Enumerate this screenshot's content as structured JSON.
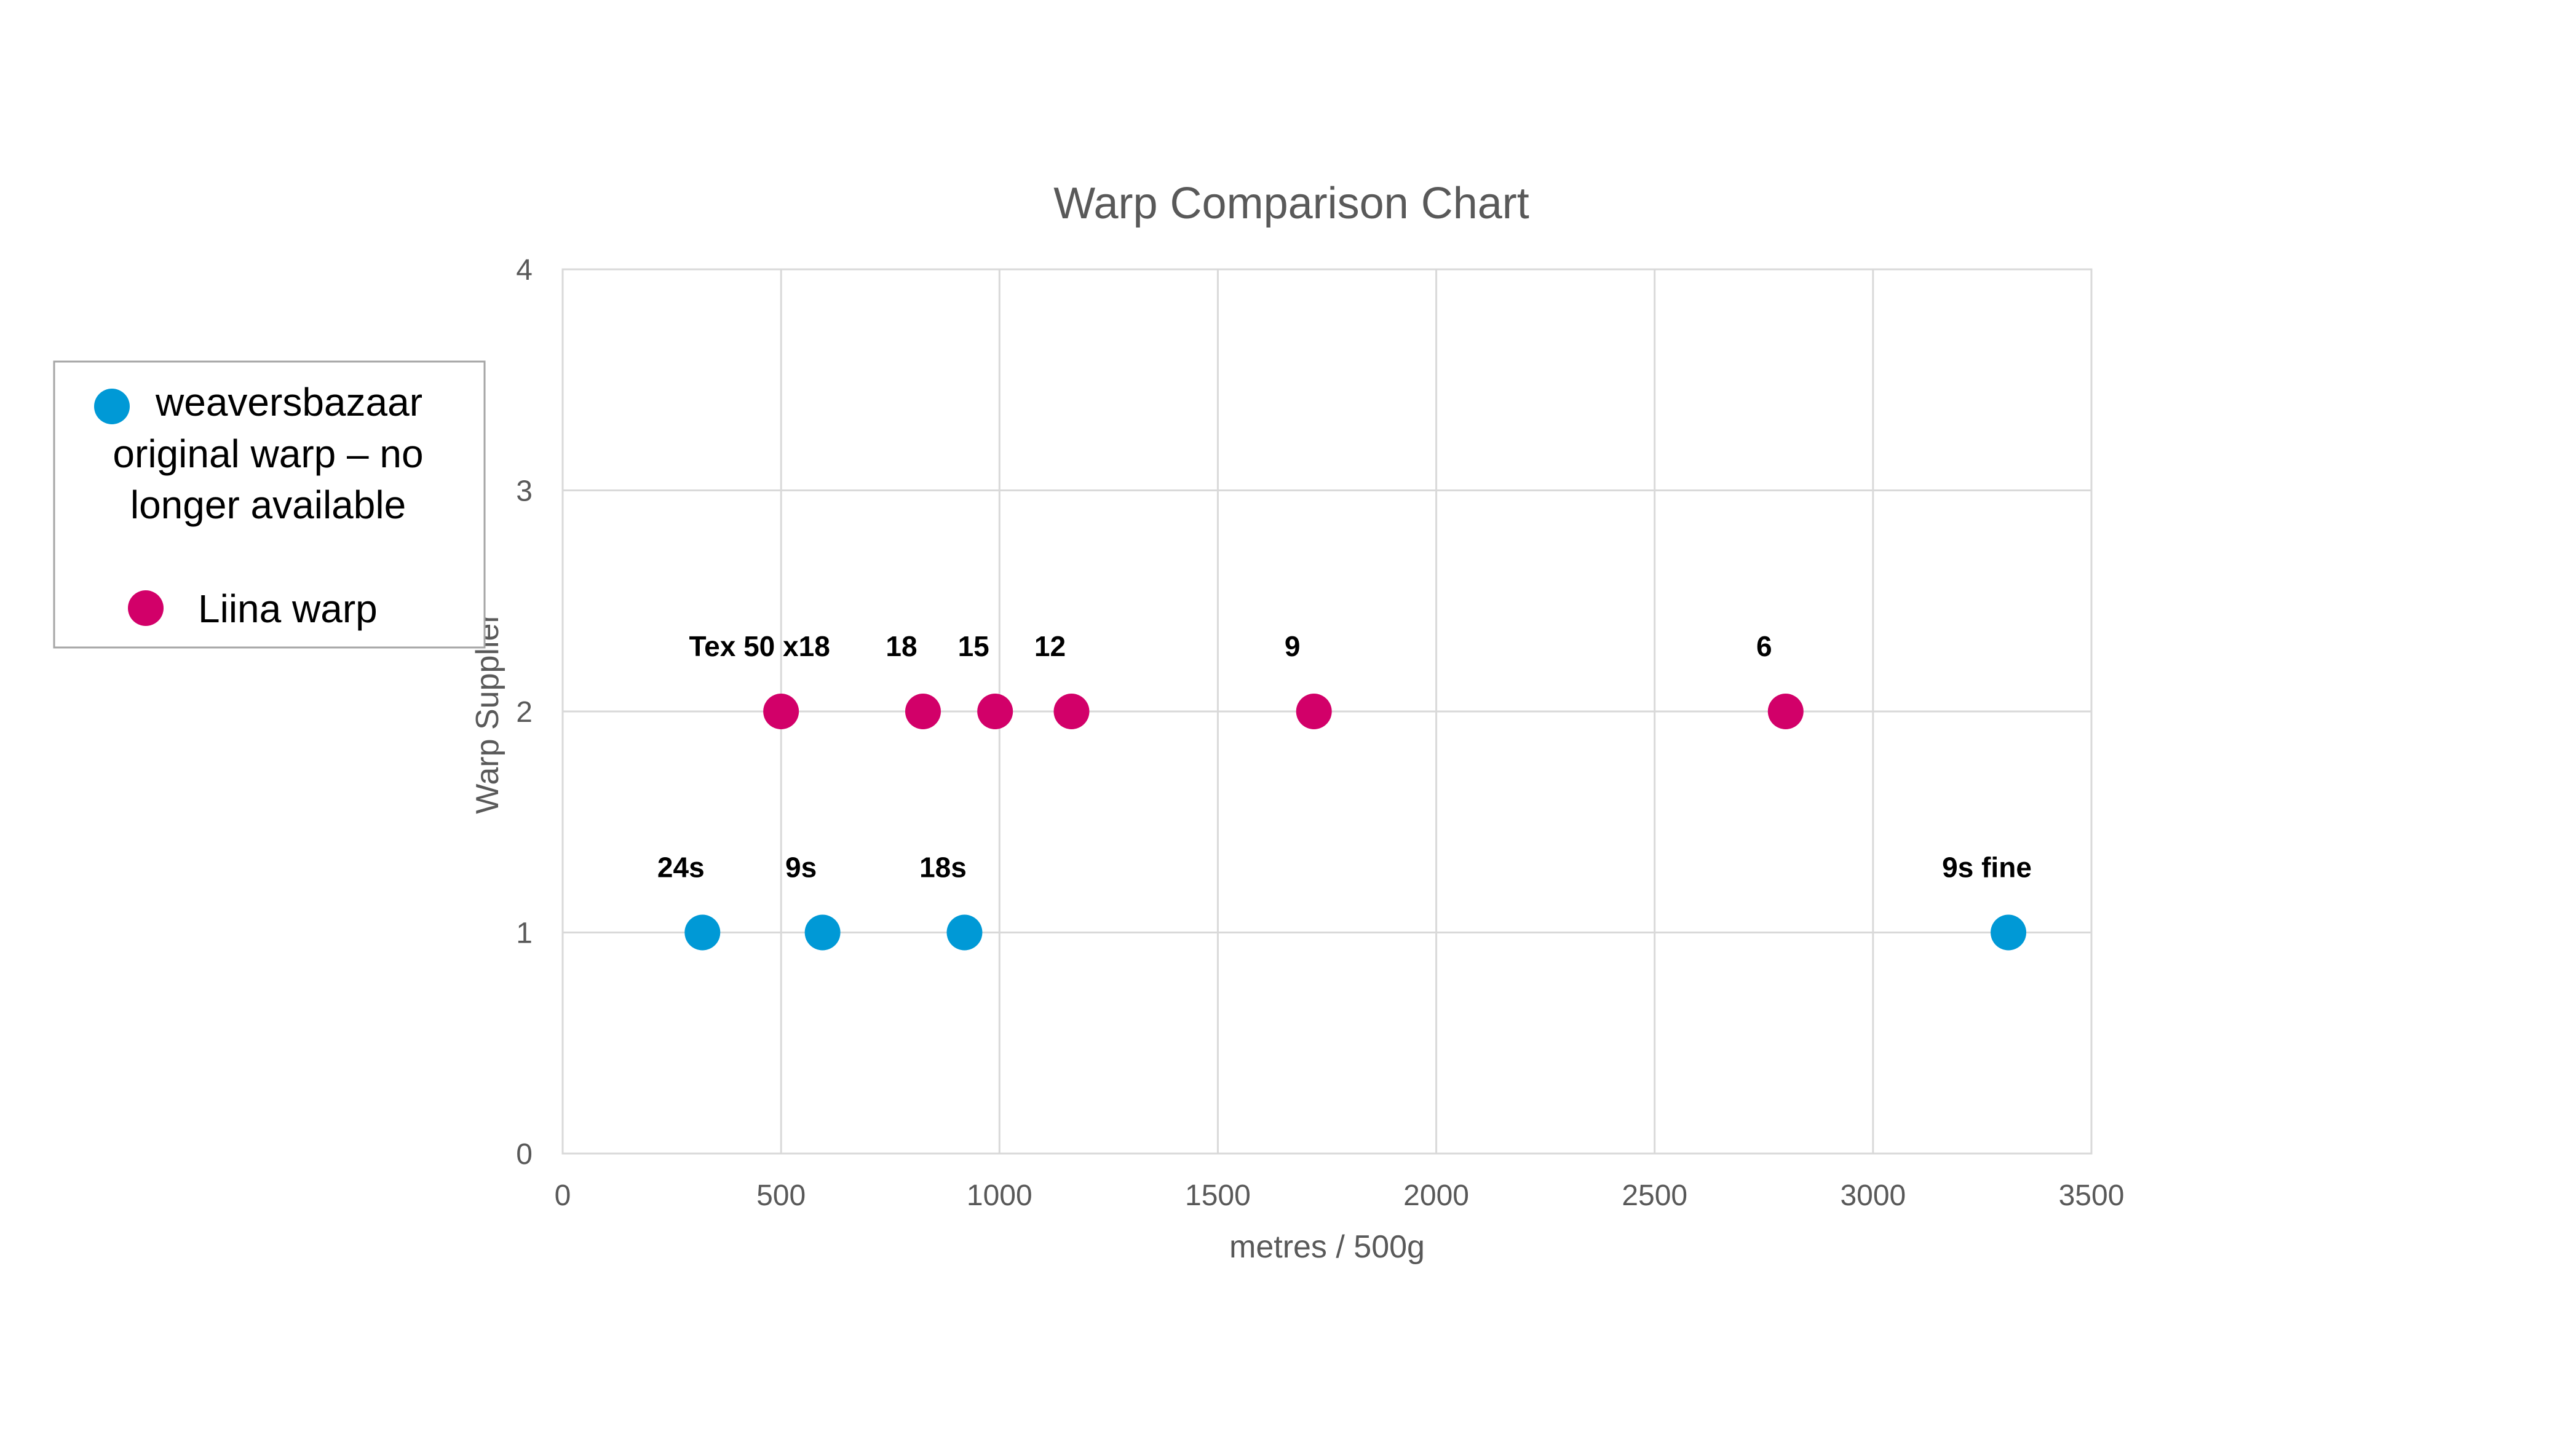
{
  "chart_data": {
    "type": "scatter",
    "title": "Warp Comparison Chart",
    "xlabel": "metres / 500g",
    "ylabel": "Warp Supplier",
    "xlim": [
      0,
      3500
    ],
    "ylim": [
      0,
      4
    ],
    "x_ticks": [
      "0",
      "500",
      "1000",
      "1500",
      "2000",
      "2500",
      "3000",
      "3500"
    ],
    "y_ticks": [
      "0",
      "1",
      "2",
      "3",
      "4"
    ],
    "grid": true,
    "legend_position": "left",
    "series": [
      {
        "legend_lines": [
          "weaversbazaar",
          "original warp – no",
          "longer available"
        ],
        "color": "#0099d6",
        "points": [
          {
            "x": 320,
            "y": 1.0,
            "label": "24s"
          },
          {
            "x": 595,
            "y": 1.0,
            "label": "9s"
          },
          {
            "x": 920,
            "y": 1.0,
            "label": "18s"
          },
          {
            "x": 3310,
            "y": 1.0,
            "label": "9s fine"
          }
        ]
      },
      {
        "legend_lines": [
          "Liina warp"
        ],
        "color": "#d20069",
        "points": [
          {
            "x": 500,
            "y": 2.0,
            "label": "Tex 50 x18"
          },
          {
            "x": 825,
            "y": 2.0,
            "label": "18"
          },
          {
            "x": 990,
            "y": 2.0,
            "label": "15"
          },
          {
            "x": 1165,
            "y": 2.0,
            "label": "12"
          },
          {
            "x": 1720,
            "y": 2.0,
            "label": "9"
          },
          {
            "x": 2800,
            "y": 2.0,
            "label": "6"
          }
        ]
      }
    ]
  }
}
